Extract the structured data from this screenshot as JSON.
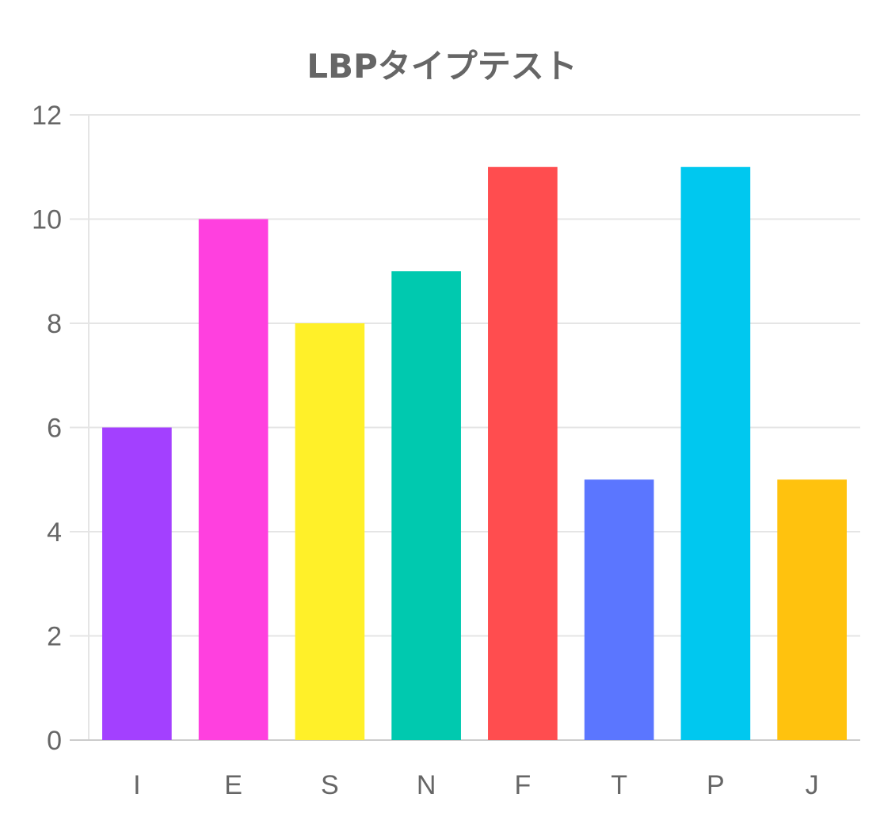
{
  "chart_data": {
    "type": "bar",
    "title": "LBPタイプテスト",
    "categories": [
      "I",
      "E",
      "S",
      "N",
      "F",
      "T",
      "P",
      "J"
    ],
    "values": [
      6,
      10,
      8,
      9,
      11,
      5,
      11,
      5
    ],
    "colors": [
      "#a340ff",
      "#ff40df",
      "#fff029",
      "#00c9af",
      "#ff4d4f",
      "#5b76ff",
      "#00c8ef",
      "#ffc20e"
    ],
    "ylim": [
      0,
      12
    ],
    "yticks": [
      "0",
      "2",
      "4",
      "6",
      "8",
      "10",
      "12"
    ],
    "xlabel": "",
    "ylabel": "",
    "grid": true,
    "legend": "none"
  }
}
